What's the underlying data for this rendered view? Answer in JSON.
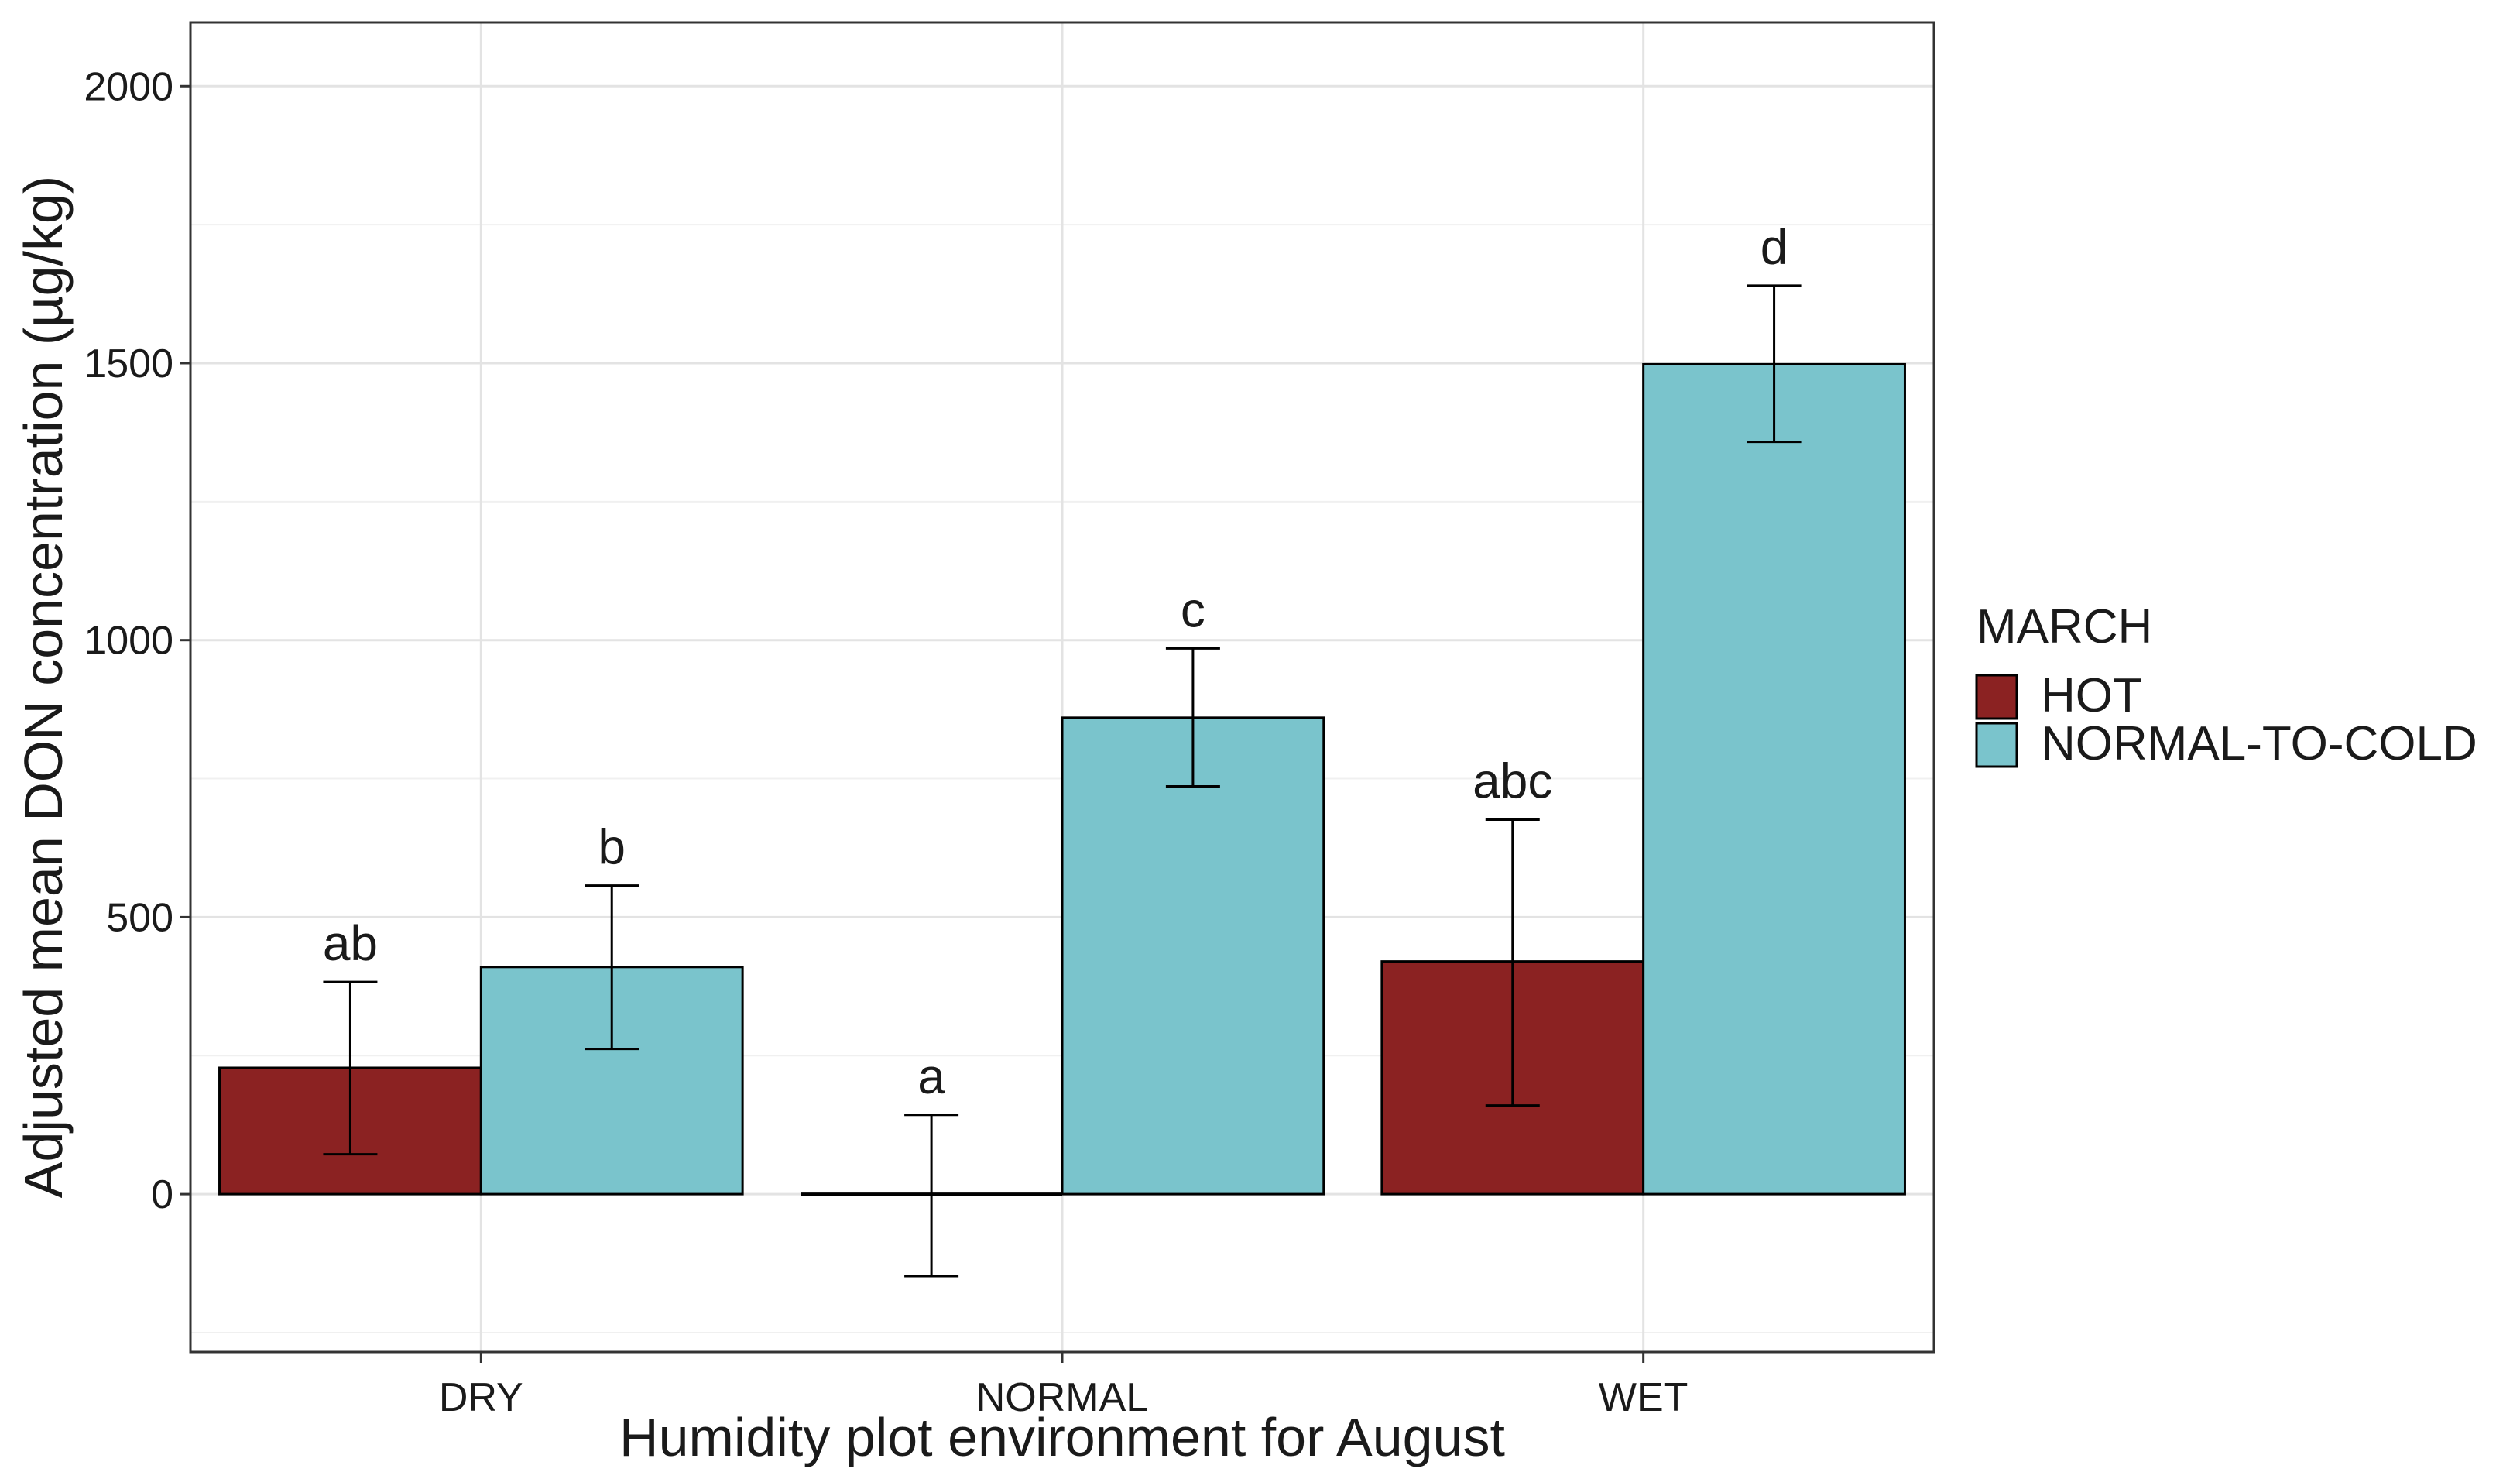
{
  "chart_data": {
    "type": "bar",
    "title": "",
    "xlabel": "Humidity plot environment for August",
    "ylabel": "Adjusted mean DON concentration (µg/kg)",
    "categories": [
      "DRY",
      "NORMAL",
      "WET"
    ],
    "legend_title": "MARCH",
    "legend_position": "right",
    "grid": true,
    "ylim": [
      -285,
      2115
    ],
    "yticks": [
      0,
      500,
      1000,
      1500,
      2000
    ],
    "ytick_labels": [
      "0",
      "500",
      "1000",
      "1500",
      "2000"
    ],
    "series": [
      {
        "name": "HOT",
        "color": "#8b2222",
        "values": [
          228,
          0,
          420
        ],
        "err_low": [
          72,
          -148,
          160
        ],
        "err_high": [
          383,
          143,
          676
        ],
        "letters": [
          "ab",
          "a",
          "abc"
        ]
      },
      {
        "name": "NORMAL-TO-COLD",
        "color": "#7ac4cc",
        "values": [
          410,
          860,
          1498
        ],
        "err_low": [
          262,
          736,
          1358
        ],
        "err_high": [
          557,
          985,
          1640
        ],
        "letters": [
          "b",
          "c",
          "d"
        ]
      }
    ]
  }
}
